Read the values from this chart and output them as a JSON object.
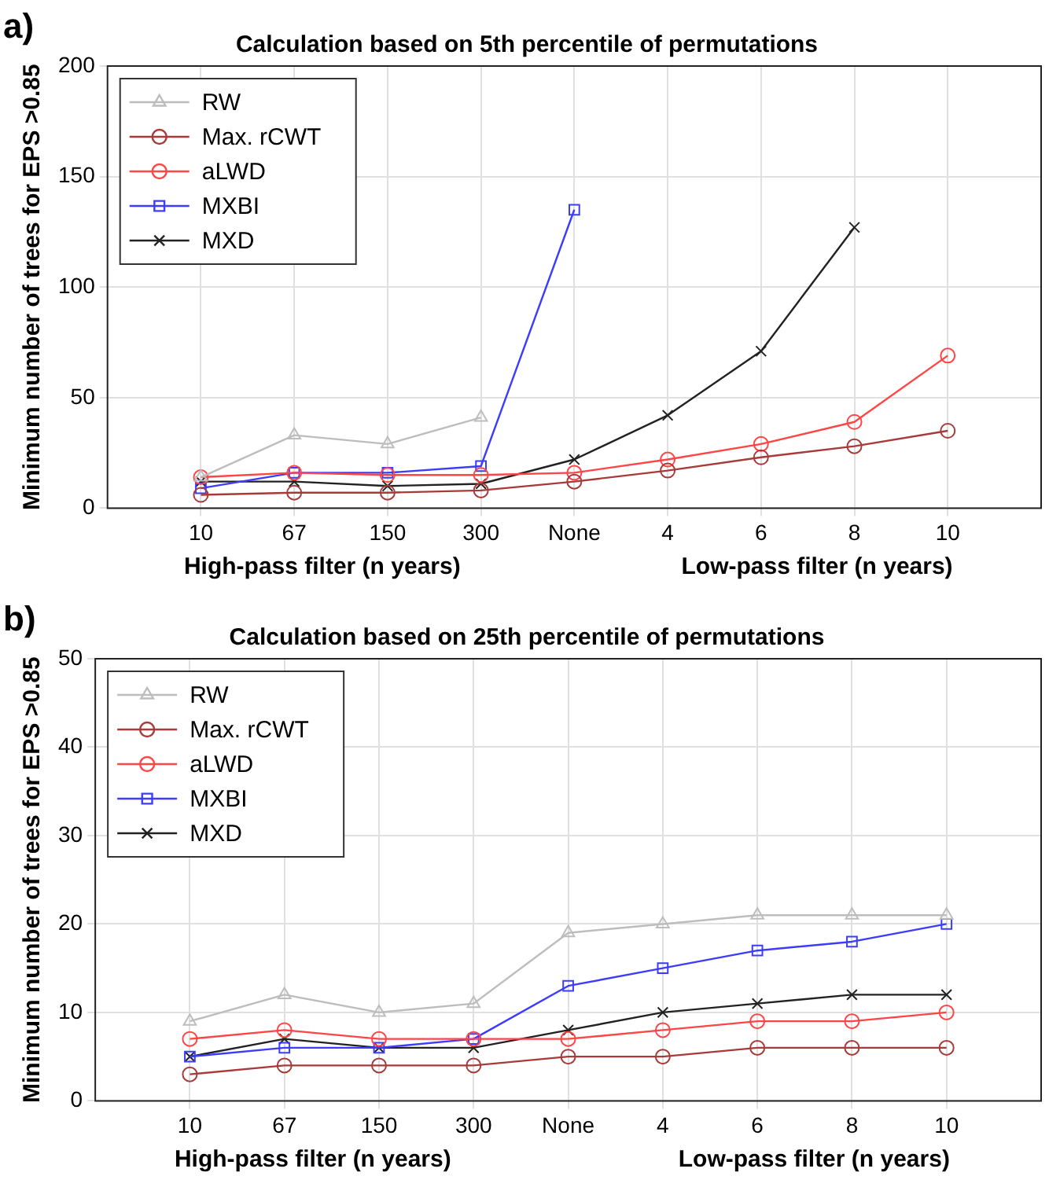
{
  "chart_data": [
    {
      "type": "line",
      "title": "Calculation based on 5th percentile of permutations",
      "ylabel": "Minimum number of trees for EPS >0.85",
      "categories": [
        "10",
        "67",
        "150",
        "300",
        "None",
        "4",
        "6",
        "8",
        "10"
      ],
      "series": [
        {
          "name": "RW",
          "color": "#bdbdbd",
          "marker": "triangle",
          "values": [
            14,
            33,
            29,
            41,
            null,
            null,
            null,
            null,
            null
          ]
        },
        {
          "name": "Max. rCWT",
          "color": "#a83a3a",
          "marker": "circle",
          "values": [
            6,
            7,
            7,
            8,
            12,
            17,
            23,
            28,
            35
          ]
        },
        {
          "name": "aLWD",
          "color": "#ff4545",
          "marker": "circle",
          "values": [
            14,
            16,
            15,
            15,
            16,
            22,
            29,
            39,
            69
          ]
        },
        {
          "name": "MXBI",
          "color": "#3c3cff",
          "marker": "square",
          "values": [
            9,
            16,
            16,
            19,
            135,
            null,
            null,
            null,
            null
          ]
        },
        {
          "name": "MXD",
          "color": "#222222",
          "marker": "cross",
          "values": [
            12,
            12,
            10,
            11,
            22,
            42,
            71,
            127,
            null
          ]
        }
      ],
      "ylim": [
        0,
        200
      ],
      "yticks": [
        0,
        50,
        100,
        150,
        200
      ],
      "grid": true,
      "legend": "top left",
      "line_style": "solid",
      "annotations": [
        "a)",
        "High-pass filter (n years)",
        "Low-pass filter (n years)"
      ]
    },
    {
      "type": "line",
      "title": "Calculation based on 25th percentile of permutations",
      "ylabel": "Minimum number of trees for EPS >0.85",
      "categories": [
        "10",
        "67",
        "150",
        "300",
        "None",
        "4",
        "6",
        "8",
        "10"
      ],
      "series": [
        {
          "name": "RW",
          "color": "#bdbdbd",
          "marker": "triangle",
          "values": [
            9,
            12,
            10,
            11,
            19,
            20,
            21,
            21,
            21
          ]
        },
        {
          "name": "Max. rCWT",
          "color": "#a83a3a",
          "marker": "circle",
          "values": [
            3,
            4,
            4,
            4,
            5,
            5,
            6,
            6,
            6
          ]
        },
        {
          "name": "aLWD",
          "color": "#ff4545",
          "marker": "circle",
          "values": [
            7,
            8,
            7,
            7,
            7,
            8,
            9,
            9,
            10
          ]
        },
        {
          "name": "MXBI",
          "color": "#3c3cff",
          "marker": "square",
          "values": [
            5,
            6,
            6,
            7,
            13,
            15,
            17,
            18,
            20
          ]
        },
        {
          "name": "MXD",
          "color": "#222222",
          "marker": "cross",
          "values": [
            5,
            7,
            6,
            6,
            8,
            10,
            11,
            12,
            12
          ]
        }
      ],
      "ylim": [
        0,
        50
      ],
      "yticks": [
        0,
        10,
        20,
        30,
        40,
        50
      ],
      "grid": true,
      "legend": "top left",
      "line_style": "solid",
      "annotations": [
        "b)",
        "High-pass filter (n years)",
        "Low-pass filter (n years)"
      ]
    }
  ]
}
